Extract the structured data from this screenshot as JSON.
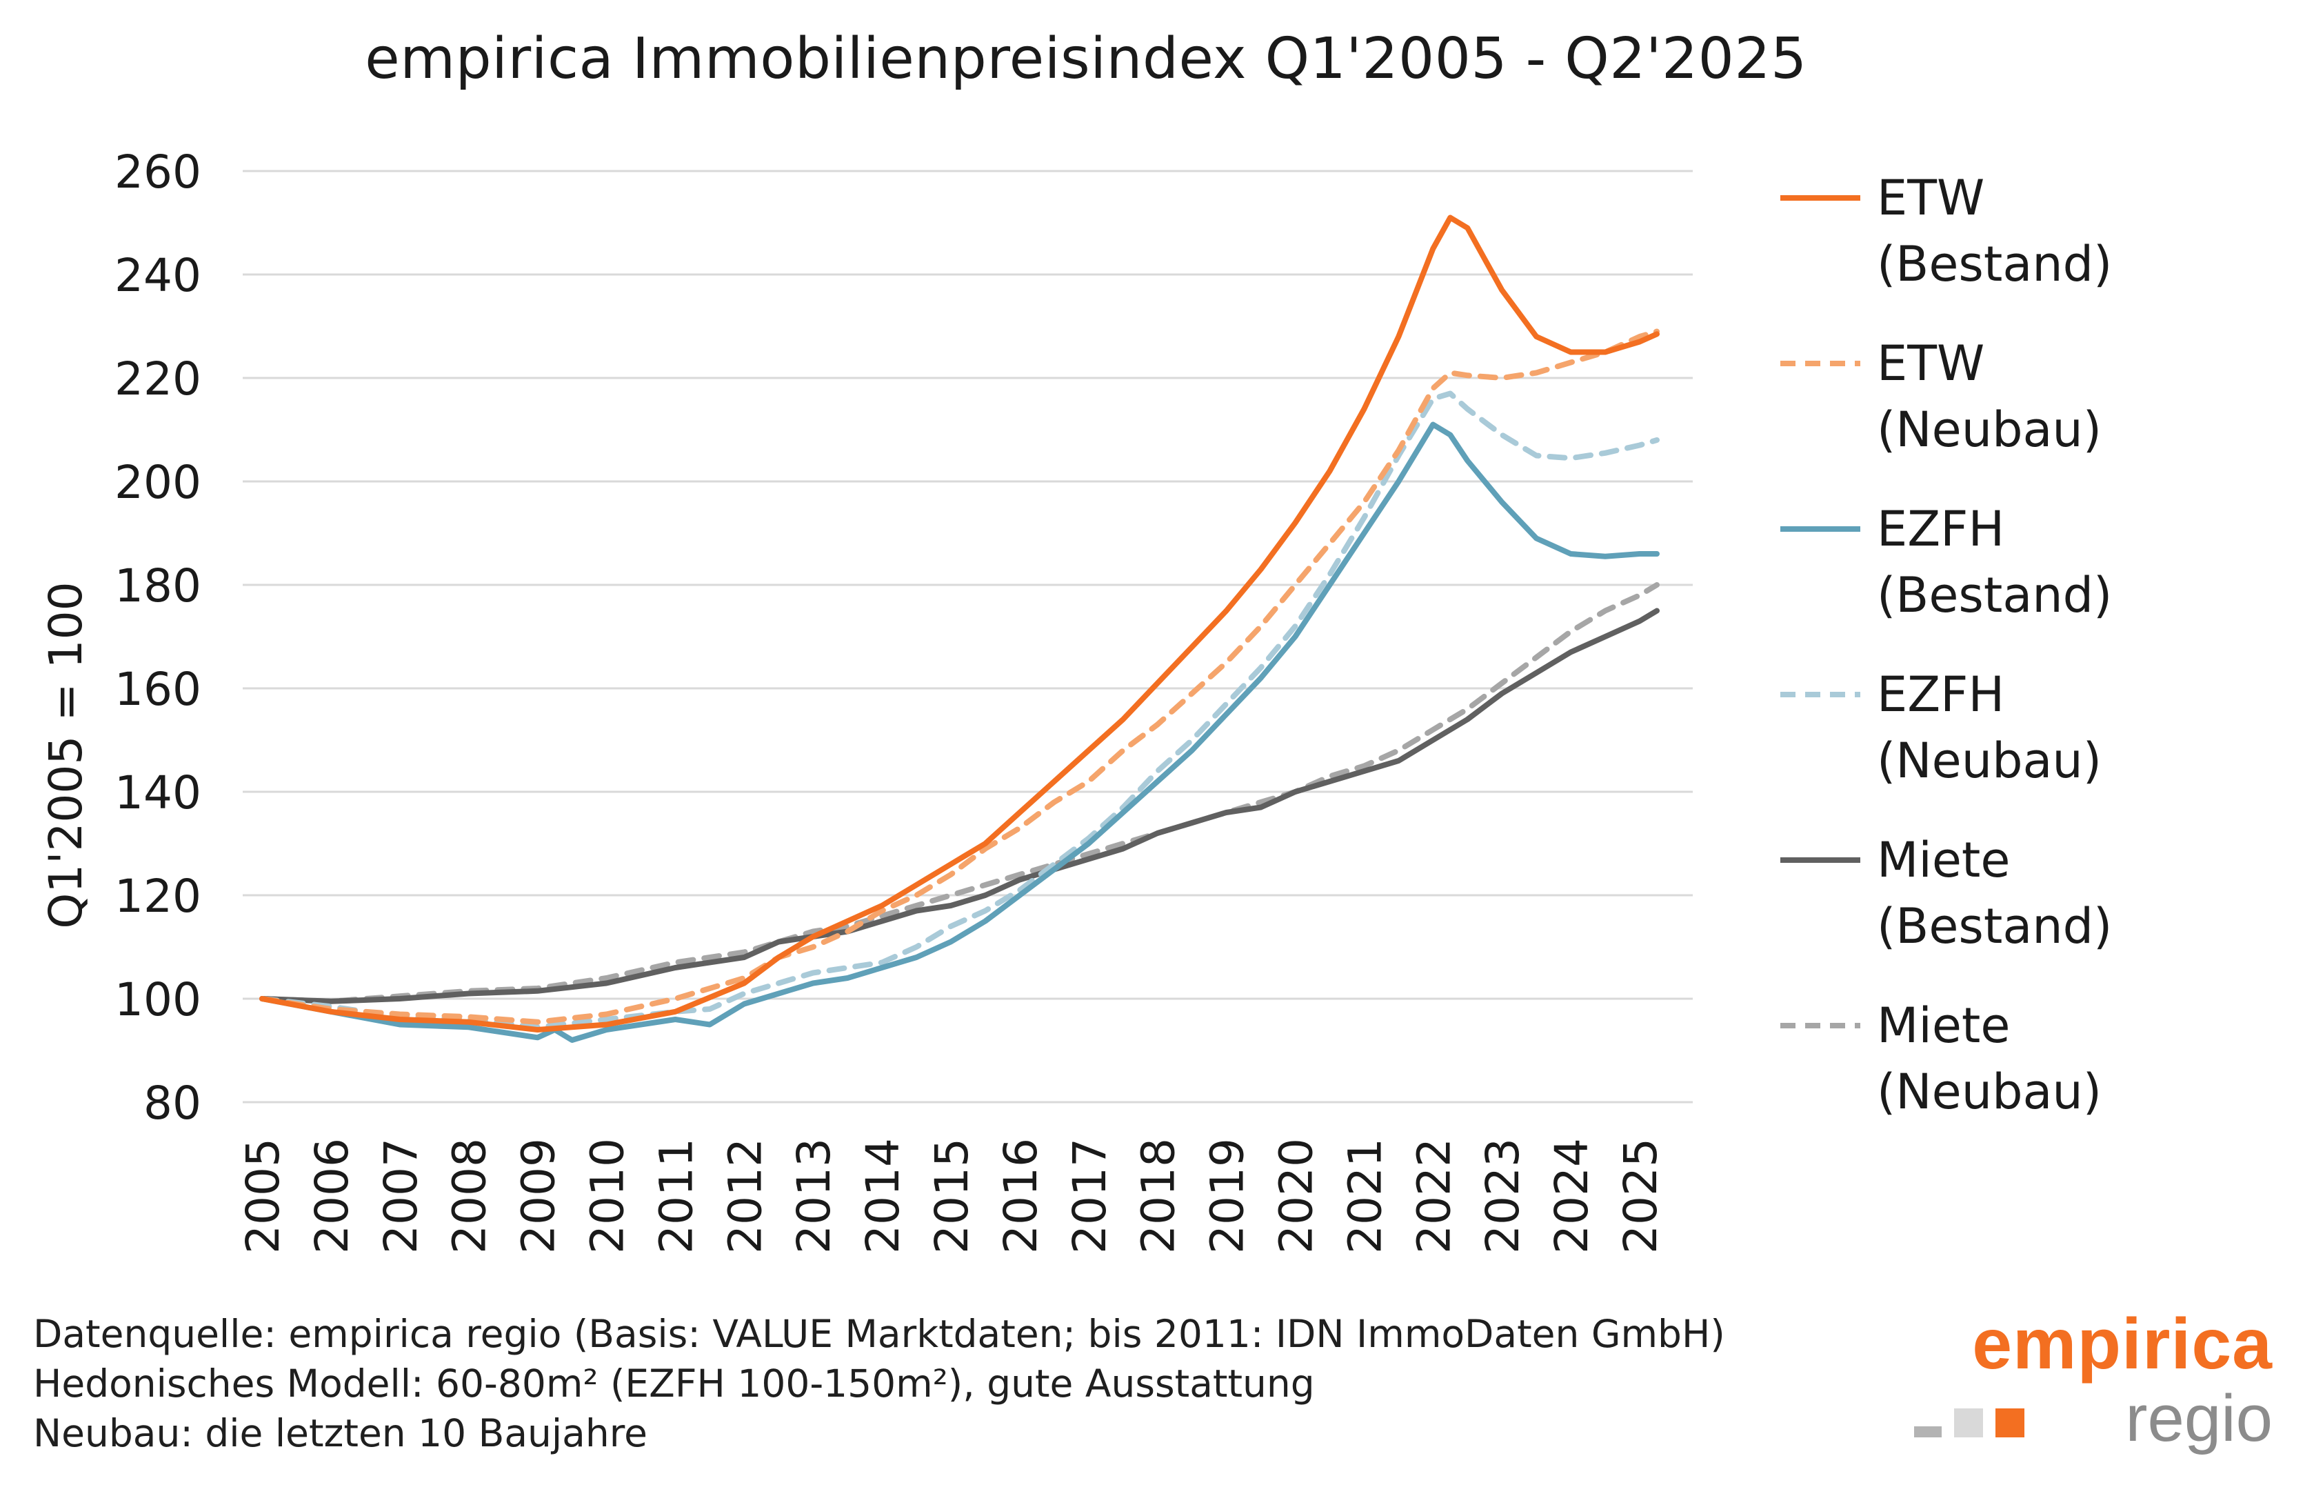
{
  "title": "empirica Immobilienpreisindex Q1'2005 - Q2'2025",
  "footnotes": [
    "Datenquelle: empirica regio (Basis: VALUE Marktdaten; bis 2011: IDN ImmoDaten GmbH)",
    "Hedonisches Modell: 60-80m² (EZFH 100-150m²), gute Ausstattung",
    "Neubau: die letzten 10 Baujahre"
  ],
  "logo": {
    "word": "empirica",
    "sub": "regio",
    "squares": [
      "#b3b3b3",
      "#d9d9d9",
      "#f36f21"
    ]
  },
  "chart_data": {
    "type": "line",
    "title": "empirica Immobilienpreisindex Q1'2005 - Q2'2025",
    "ylabel": "Q1'2005 = 100",
    "xlabel": "",
    "ylim": [
      80,
      260
    ],
    "yticks": [
      80,
      100,
      120,
      140,
      160,
      180,
      200,
      220,
      240,
      260
    ],
    "xlim": [
      2005,
      2025.25
    ],
    "xticks": [
      2005,
      2006,
      2007,
      2008,
      2009,
      2010,
      2011,
      2012,
      2013,
      2014,
      2015,
      2016,
      2017,
      2018,
      2019,
      2020,
      2021,
      2022,
      2023,
      2024,
      2025
    ],
    "grid": "horizontal",
    "legend_position": "right",
    "series": [
      {
        "name": "ETW (Bestand)",
        "legend_lines": [
          "ETW",
          "(Bestand)"
        ],
        "color": "#f36f21",
        "style": "solid",
        "points": [
          [
            2005,
            100
          ],
          [
            2006,
            97.5
          ],
          [
            2007,
            96
          ],
          [
            2008,
            95.5
          ],
          [
            2009,
            94
          ],
          [
            2010,
            95
          ],
          [
            2011,
            97.5
          ],
          [
            2012,
            103
          ],
          [
            2012.5,
            108
          ],
          [
            2013,
            112
          ],
          [
            2013.5,
            115
          ],
          [
            2014,
            118
          ],
          [
            2014.5,
            122
          ],
          [
            2015,
            126
          ],
          [
            2015.5,
            130
          ],
          [
            2016,
            136
          ],
          [
            2016.5,
            142
          ],
          [
            2017,
            148
          ],
          [
            2017.5,
            154
          ],
          [
            2018,
            161
          ],
          [
            2018.5,
            168
          ],
          [
            2019,
            175
          ],
          [
            2019.5,
            183
          ],
          [
            2020,
            192
          ],
          [
            2020.5,
            202
          ],
          [
            2021,
            214
          ],
          [
            2021.5,
            228
          ],
          [
            2022,
            245
          ],
          [
            2022.25,
            251
          ],
          [
            2022.5,
            249
          ],
          [
            2022.75,
            243
          ],
          [
            2023,
            237
          ],
          [
            2023.5,
            228
          ],
          [
            2024,
            225
          ],
          [
            2024.5,
            225
          ],
          [
            2025,
            227
          ],
          [
            2025.25,
            228.5
          ]
        ]
      },
      {
        "name": "ETW (Neubau)",
        "legend_lines": [
          "ETW",
          "(Neubau)"
        ],
        "color": "#f5a46b",
        "style": "dashed",
        "points": [
          [
            2005,
            100
          ],
          [
            2006,
            98
          ],
          [
            2007,
            97
          ],
          [
            2008,
            96.5
          ],
          [
            2009,
            95.5
          ],
          [
            2010,
            97
          ],
          [
            2011,
            100
          ],
          [
            2012,
            104
          ],
          [
            2012.5,
            108
          ],
          [
            2013,
            110
          ],
          [
            2013.5,
            113
          ],
          [
            2014,
            117
          ],
          [
            2014.5,
            120
          ],
          [
            2015,
            124
          ],
          [
            2015.5,
            129
          ],
          [
            2016,
            133
          ],
          [
            2016.5,
            138
          ],
          [
            2017,
            142
          ],
          [
            2017.5,
            148
          ],
          [
            2018,
            153
          ],
          [
            2018.5,
            159
          ],
          [
            2019,
            165
          ],
          [
            2019.5,
            172
          ],
          [
            2020,
            180
          ],
          [
            2020.5,
            188
          ],
          [
            2021,
            196
          ],
          [
            2021.5,
            206
          ],
          [
            2022,
            218
          ],
          [
            2022.25,
            221
          ],
          [
            2022.5,
            220.5
          ],
          [
            2023,
            220
          ],
          [
            2023.5,
            221
          ],
          [
            2024,
            223
          ],
          [
            2024.5,
            225
          ],
          [
            2025,
            228
          ],
          [
            2025.25,
            229
          ]
        ]
      },
      {
        "name": "EZFH (Bestand)",
        "legend_lines": [
          "EZFH",
          "(Bestand)"
        ],
        "color": "#5fa0b8",
        "style": "solid",
        "points": [
          [
            2005,
            100
          ],
          [
            2006,
            97.5
          ],
          [
            2007,
            95
          ],
          [
            2008,
            94.5
          ],
          [
            2008.5,
            93.5
          ],
          [
            2009,
            92.5
          ],
          [
            2009.25,
            94
          ],
          [
            2009.5,
            92
          ],
          [
            2010,
            94
          ],
          [
            2010.5,
            95
          ],
          [
            2011,
            96
          ],
          [
            2011.5,
            95
          ],
          [
            2012,
            99
          ],
          [
            2012.5,
            101
          ],
          [
            2013,
            103
          ],
          [
            2013.5,
            104
          ],
          [
            2014,
            106
          ],
          [
            2014.5,
            108
          ],
          [
            2015,
            111
          ],
          [
            2015.5,
            115
          ],
          [
            2016,
            120
          ],
          [
            2016.5,
            125
          ],
          [
            2017,
            130
          ],
          [
            2017.5,
            136
          ],
          [
            2018,
            142
          ],
          [
            2018.5,
            148
          ],
          [
            2019,
            155
          ],
          [
            2019.5,
            162
          ],
          [
            2020,
            170
          ],
          [
            2020.5,
            180
          ],
          [
            2021,
            190
          ],
          [
            2021.5,
            200
          ],
          [
            2022,
            211
          ],
          [
            2022.25,
            209
          ],
          [
            2022.5,
            204
          ],
          [
            2023,
            196
          ],
          [
            2023.5,
            189
          ],
          [
            2024,
            186
          ],
          [
            2024.5,
            185.5
          ],
          [
            2025,
            186
          ],
          [
            2025.25,
            186
          ]
        ]
      },
      {
        "name": "EZFH (Neubau)",
        "legend_lines": [
          "EZFH",
          "(Neubau)"
        ],
        "color": "#a9cad8",
        "style": "dashed",
        "points": [
          [
            2005,
            100
          ],
          [
            2006,
            98.5
          ],
          [
            2007,
            96.5
          ],
          [
            2008,
            96
          ],
          [
            2009,
            94.5
          ],
          [
            2010,
            96
          ],
          [
            2011,
            97.5
          ],
          [
            2011.5,
            98
          ],
          [
            2012,
            101
          ],
          [
            2012.5,
            103
          ],
          [
            2013,
            105
          ],
          [
            2013.5,
            106
          ],
          [
            2014,
            107
          ],
          [
            2014.5,
            110
          ],
          [
            2015,
            114
          ],
          [
            2015.5,
            117
          ],
          [
            2016,
            121
          ],
          [
            2016.5,
            126
          ],
          [
            2017,
            131
          ],
          [
            2017.5,
            137
          ],
          [
            2018,
            144
          ],
          [
            2018.5,
            150
          ],
          [
            2019,
            157
          ],
          [
            2019.5,
            164
          ],
          [
            2020,
            172
          ],
          [
            2020.5,
            182
          ],
          [
            2021,
            193
          ],
          [
            2021.5,
            205
          ],
          [
            2022,
            216
          ],
          [
            2022.25,
            217
          ],
          [
            2022.5,
            214
          ],
          [
            2023,
            209
          ],
          [
            2023.5,
            205
          ],
          [
            2024,
            204.5
          ],
          [
            2024.5,
            205.5
          ],
          [
            2025,
            207
          ],
          [
            2025.25,
            208
          ]
        ]
      },
      {
        "name": "Miete (Bestand)",
        "legend_lines": [
          "Miete",
          "(Bestand)"
        ],
        "color": "#606060",
        "style": "solid",
        "points": [
          [
            2005,
            100
          ],
          [
            2006,
            99.5
          ],
          [
            2007,
            100
          ],
          [
            2008,
            101
          ],
          [
            2009,
            101.5
          ],
          [
            2010,
            103
          ],
          [
            2011,
            106
          ],
          [
            2012,
            108
          ],
          [
            2012.5,
            111
          ],
          [
            2013,
            112
          ],
          [
            2013.5,
            113
          ],
          [
            2014,
            115
          ],
          [
            2014.5,
            117
          ],
          [
            2015,
            118
          ],
          [
            2015.5,
            120
          ],
          [
            2016,
            123
          ],
          [
            2016.5,
            125
          ],
          [
            2017,
            127
          ],
          [
            2017.5,
            129
          ],
          [
            2018,
            132
          ],
          [
            2018.5,
            134
          ],
          [
            2019,
            136
          ],
          [
            2019.5,
            137
          ],
          [
            2020,
            140
          ],
          [
            2020.5,
            142
          ],
          [
            2021,
            144
          ],
          [
            2021.5,
            146
          ],
          [
            2022,
            150
          ],
          [
            2022.5,
            154
          ],
          [
            2023,
            159
          ],
          [
            2023.5,
            163
          ],
          [
            2024,
            167
          ],
          [
            2024.5,
            170
          ],
          [
            2025,
            173
          ],
          [
            2025.25,
            175
          ]
        ]
      },
      {
        "name": "Miete (Neubau)",
        "legend_lines": [
          "Miete",
          "(Neubau)"
        ],
        "color": "#a6a6a6",
        "style": "dashed",
        "points": [
          [
            2005,
            100
          ],
          [
            2006,
            99.5
          ],
          [
            2007,
            100.5
          ],
          [
            2008,
            101.5
          ],
          [
            2009,
            102
          ],
          [
            2010,
            104
          ],
          [
            2011,
            107
          ],
          [
            2012,
            109
          ],
          [
            2012.5,
            111
          ],
          [
            2013,
            113
          ],
          [
            2013.5,
            114
          ],
          [
            2014,
            116
          ],
          [
            2014.5,
            118
          ],
          [
            2015,
            120
          ],
          [
            2015.5,
            122
          ],
          [
            2016,
            124
          ],
          [
            2016.5,
            126
          ],
          [
            2017,
            128
          ],
          [
            2017.5,
            130
          ],
          [
            2018,
            132
          ],
          [
            2018.5,
            134
          ],
          [
            2019,
            136
          ],
          [
            2019.5,
            138
          ],
          [
            2020,
            140
          ],
          [
            2020.5,
            143
          ],
          [
            2021,
            145
          ],
          [
            2021.5,
            148
          ],
          [
            2022,
            152
          ],
          [
            2022.5,
            156
          ],
          [
            2023,
            161
          ],
          [
            2023.5,
            166
          ],
          [
            2024,
            171
          ],
          [
            2024.5,
            175
          ],
          [
            2025,
            178
          ],
          [
            2025.25,
            180
          ]
        ]
      }
    ]
  }
}
